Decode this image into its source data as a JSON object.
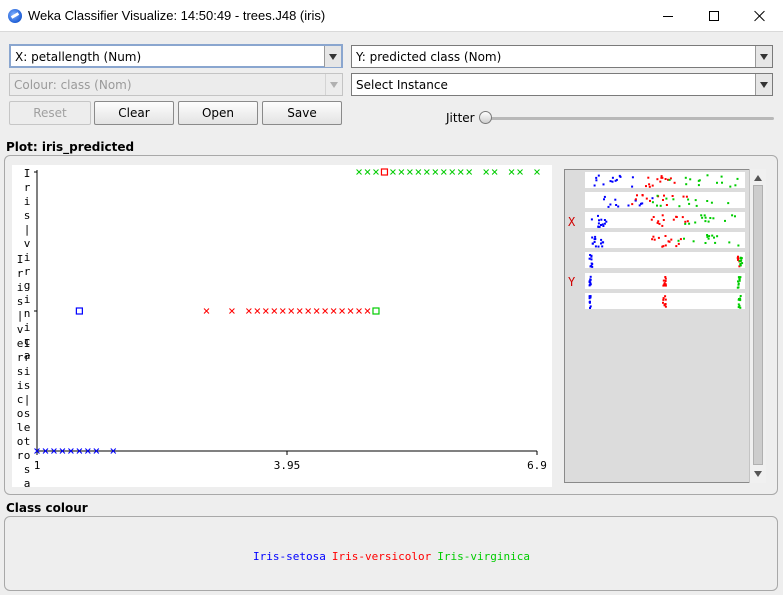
{
  "window": {
    "title": "Weka Classifier Visualize: 14:50:49 - trees.J48 (iris)",
    "icon": "weka-bird-icon"
  },
  "controls": {
    "x_axis": "X: petallength (Num)",
    "y_axis": "Y: predicted class (Nom)",
    "colour": "Colour: class (Nom)",
    "instance": "Select Instance",
    "buttons": {
      "reset": "Reset",
      "clear": "Clear",
      "open": "Open",
      "save": "Save"
    },
    "jitter_label": "Jitter",
    "jitter_value": 0
  },
  "plot": {
    "title": "Plot: iris_predicted",
    "y_label_lines": [
      "Iris-virginica",
      "Iris-versicolor",
      "Iris-setosa"
    ]
  },
  "chart_data": {
    "type": "scatter",
    "xlabel": "petallength",
    "ylabel": "predicted class",
    "xlim": [
      1,
      6.9
    ],
    "x_ticks": [
      "1",
      "3.95",
      "6.9"
    ],
    "y_categories": [
      "Iris-setosa",
      "Iris-versicolor",
      "Iris-virginica"
    ],
    "series": [
      {
        "name": "Iris-setosa",
        "color": "#0000ff",
        "points": [
          {
            "x": 1.0,
            "y": "Iris-setosa"
          },
          {
            "x": 1.1,
            "y": "Iris-setosa"
          },
          {
            "x": 1.2,
            "y": "Iris-setosa"
          },
          {
            "x": 1.3,
            "y": "Iris-setosa"
          },
          {
            "x": 1.4,
            "y": "Iris-setosa"
          },
          {
            "x": 1.5,
            "y": "Iris-setosa"
          },
          {
            "x": 1.6,
            "y": "Iris-setosa"
          },
          {
            "x": 1.7,
            "y": "Iris-setosa"
          },
          {
            "x": 1.9,
            "y": "Iris-setosa"
          },
          {
            "x": 1.5,
            "y": "Iris-versicolor",
            "error": true
          }
        ]
      },
      {
        "name": "Iris-versicolor",
        "color": "#ff0000",
        "points": [
          {
            "x": 3.0,
            "y": "Iris-versicolor"
          },
          {
            "x": 3.3,
            "y": "Iris-versicolor"
          },
          {
            "x": 3.5,
            "y": "Iris-versicolor"
          },
          {
            "x": 3.6,
            "y": "Iris-versicolor"
          },
          {
            "x": 3.7,
            "y": "Iris-versicolor"
          },
          {
            "x": 3.8,
            "y": "Iris-versicolor"
          },
          {
            "x": 3.9,
            "y": "Iris-versicolor"
          },
          {
            "x": 4.0,
            "y": "Iris-versicolor"
          },
          {
            "x": 4.1,
            "y": "Iris-versicolor"
          },
          {
            "x": 4.2,
            "y": "Iris-versicolor"
          },
          {
            "x": 4.3,
            "y": "Iris-versicolor"
          },
          {
            "x": 4.4,
            "y": "Iris-versicolor"
          },
          {
            "x": 4.5,
            "y": "Iris-versicolor"
          },
          {
            "x": 4.6,
            "y": "Iris-versicolor"
          },
          {
            "x": 4.7,
            "y": "Iris-versicolor"
          },
          {
            "x": 4.8,
            "y": "Iris-versicolor"
          },
          {
            "x": 4.9,
            "y": "Iris-versicolor"
          },
          {
            "x": 5.1,
            "y": "Iris-virginica",
            "error": true
          }
        ]
      },
      {
        "name": "Iris-virginica",
        "color": "#00cc00",
        "points": [
          {
            "x": 4.8,
            "y": "Iris-virginica"
          },
          {
            "x": 4.9,
            "y": "Iris-virginica"
          },
          {
            "x": 5.0,
            "y": "Iris-virginica"
          },
          {
            "x": 5.2,
            "y": "Iris-virginica"
          },
          {
            "x": 5.3,
            "y": "Iris-virginica"
          },
          {
            "x": 5.4,
            "y": "Iris-virginica"
          },
          {
            "x": 5.5,
            "y": "Iris-virginica"
          },
          {
            "x": 5.6,
            "y": "Iris-virginica"
          },
          {
            "x": 5.7,
            "y": "Iris-virginica"
          },
          {
            "x": 5.8,
            "y": "Iris-virginica"
          },
          {
            "x": 5.9,
            "y": "Iris-virginica"
          },
          {
            "x": 6.0,
            "y": "Iris-virginica"
          },
          {
            "x": 6.1,
            "y": "Iris-virginica"
          },
          {
            "x": 6.3,
            "y": "Iris-virginica"
          },
          {
            "x": 6.4,
            "y": "Iris-virginica"
          },
          {
            "x": 6.6,
            "y": "Iris-virginica"
          },
          {
            "x": 6.7,
            "y": "Iris-virginica"
          },
          {
            "x": 6.9,
            "y": "Iris-virginica"
          },
          {
            "x": 5.0,
            "y": "Iris-versicolor",
            "error": true
          }
        ]
      }
    ]
  },
  "attribute_panel": {
    "x_marker": "X",
    "y_marker": "Y",
    "rows": 7
  },
  "class_colour": {
    "title": "Class colour",
    "items": [
      {
        "label": "Iris-setosa",
        "color": "#0000ff"
      },
      {
        "label": "Iris-versicolor",
        "color": "#ff0000"
      },
      {
        "label": "Iris-virginica",
        "color": "#00cc00"
      }
    ]
  }
}
